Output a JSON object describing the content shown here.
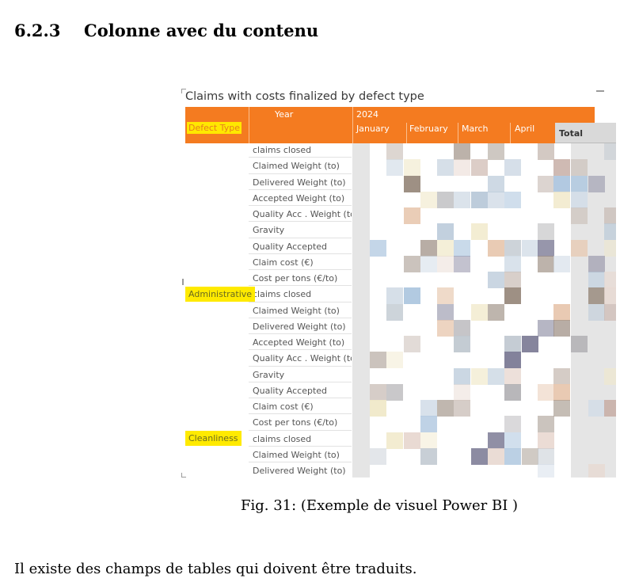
{
  "heading": {
    "number": "6.2.3",
    "title": "Colonne avec du contenu"
  },
  "visual": {
    "title": "Claims with costs finalized by defect type",
    "header": {
      "year_label": "Year",
      "year_value": "2024",
      "defect_type_label": "Defect Type",
      "months": [
        "January",
        "February",
        "March",
        "April"
      ],
      "total_label": "Total"
    },
    "row_labels": [
      "claims closed",
      "Claimed Weight (to)",
      "Delivered Weight (to)",
      "Accepted Weight (to)",
      "Quality Acc . Weight (to)",
      "Gravity",
      "Quality Accepted",
      "Claim cost (€)",
      "Cost per tons (€/to)",
      "claims closed",
      "Claimed Weight (to)",
      "Delivered Weight (to)",
      "Accepted Weight (to)",
      "Quality Acc . Weight (to)",
      "Gravity",
      "Quality Accepted",
      "Claim cost (€)",
      "Cost per tons (€/to)",
      "claims closed",
      "Claimed Weight (to)",
      "Delivered Weight (to)"
    ],
    "groups": [
      "Administrative",
      "Cleanliness"
    ],
    "pixelated_colors": [
      "#aeadb0",
      "#c5b8b0",
      "#d3dde8",
      "#e8d8d0",
      "#c8b0a8",
      "#b8c8d8",
      "#7f7e98",
      "#9c8e82",
      "#f0e8c8",
      "#e8c8b0",
      "#b0c8e0",
      "#c0c8d0"
    ]
  },
  "caption": "Fig. 31: (Exemple de visuel Power BI )",
  "body_text": "Il existe des champs de tables qui doivent être traduits."
}
